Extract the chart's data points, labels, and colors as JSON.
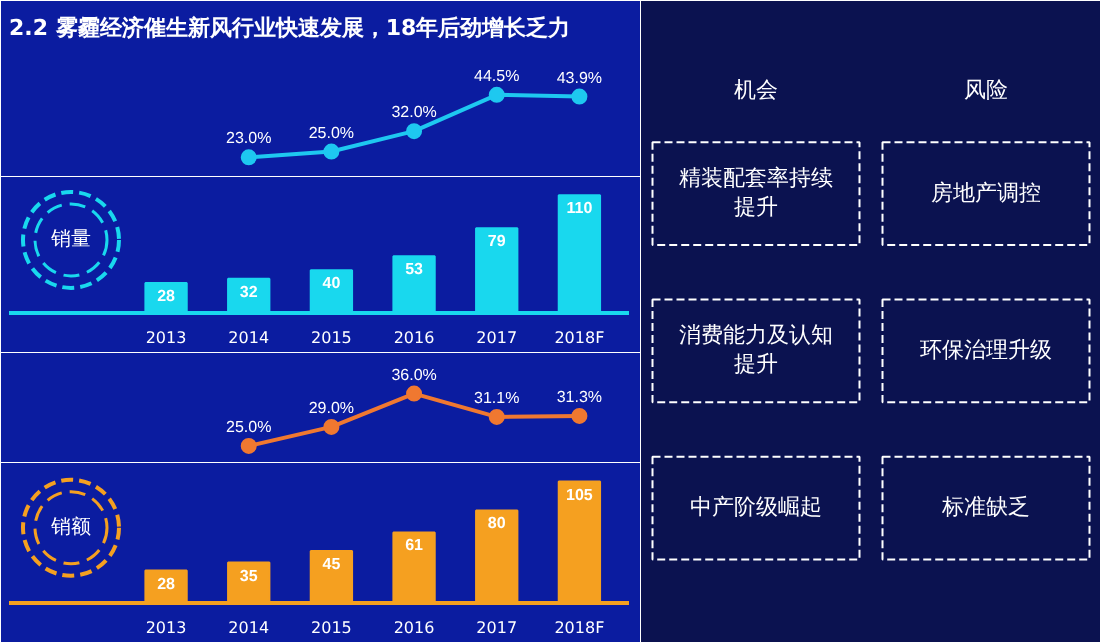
{
  "chart_data": [
    {
      "type": "line",
      "title": "2.2 雾霾经济催生新风行业快速发展，18年后劲增长乏力",
      "categories": [
        "2013",
        "2014",
        "2015",
        "2016",
        "2017",
        "2018F"
      ],
      "marker": "circle",
      "tick_labels": false,
      "series": [
        {
          "color": "#1ec8f0",
          "values": [
            null,
            23.0,
            25.0,
            32.0,
            44.5,
            43.9
          ],
          "value_labels": [
            null,
            "23.0%",
            "25.0%",
            "32.0%",
            "44.5%",
            "43.9%"
          ]
        }
      ]
    },
    {
      "type": "bar",
      "ylabel": "销量",
      "categories": [
        "2013",
        "2014",
        "2015",
        "2016",
        "2017",
        "2018F"
      ],
      "tick_labels": "x",
      "series": [
        {
          "color": "#19d8ee",
          "values": [
            28,
            32,
            40,
            53,
            79,
            110
          ],
          "value_labels": [
            "28",
            "32",
            "40",
            "53",
            "79",
            "110"
          ]
        }
      ]
    },
    {
      "type": "line",
      "categories": [
        "2013",
        "2014",
        "2015",
        "2016",
        "2017",
        "2018F"
      ],
      "marker": "circle",
      "tick_labels": false,
      "series": [
        {
          "color": "#f07830",
          "values": [
            null,
            25.0,
            29.0,
            36.0,
            31.1,
            31.3
          ],
          "value_labels": [
            null,
            "25.0%",
            "29.0%",
            "36.0%",
            "31.1%",
            "31.3%"
          ]
        }
      ]
    },
    {
      "type": "bar",
      "ylabel": "销额",
      "categories": [
        "2013",
        "2014",
        "2015",
        "2016",
        "2017",
        "2018F"
      ],
      "tick_labels": "x",
      "series": [
        {
          "color": "#f5a020",
          "values": [
            28,
            35,
            45,
            61,
            80,
            105
          ],
          "value_labels": [
            "28",
            "35",
            "45",
            "61",
            "80",
            "105"
          ]
        }
      ]
    },
    {
      "type": "other",
      "annotations": [
        "机会",
        "风险",
        "精装配套率持续提升",
        "房地产调控",
        "消费能力及认知提升",
        "环保治理升级",
        "中产阶级崛起",
        "标准缺乏"
      ]
    }
  ]
}
